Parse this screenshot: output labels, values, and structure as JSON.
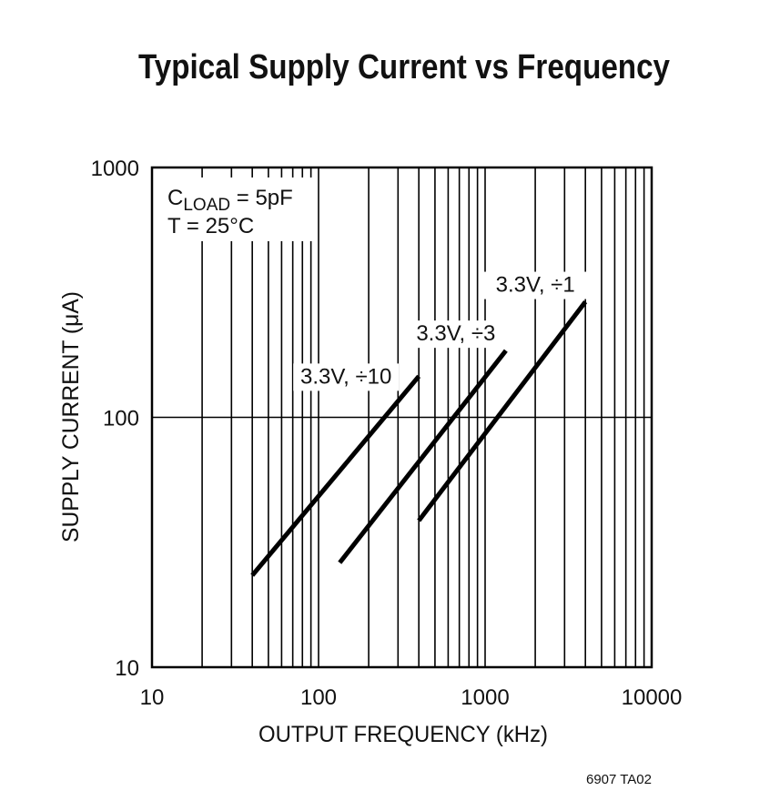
{
  "chart_data": {
    "type": "line",
    "title": "Typical Supply Current vs Frequency",
    "x_label": "OUTPUT FREQUENCY (kHz)",
    "y_label": "SUPPLY CURRENT (μA)",
    "xscale": "log",
    "yscale": "log",
    "xlim": [
      10,
      10000
    ],
    "ylim": [
      10,
      1000
    ],
    "xticks": [
      10,
      100,
      1000,
      10000
    ],
    "yticks": [
      10,
      100,
      1000
    ],
    "x_minor_grid": true,
    "y_minor_grid": false,
    "grid": true,
    "annotation_lines": [
      [
        "C",
        "LOAD",
        " = 5pF"
      ],
      [
        "T = 25°C"
      ]
    ],
    "footnote": "6907 TA02",
    "series": [
      {
        "name": "3.3V, ÷10",
        "color": "#000000",
        "x": [
          40,
          400
        ],
        "values": [
          23.3,
          146
        ]
      },
      {
        "name": "3.3V, ÷3",
        "color": "#000000",
        "x": [
          134,
          1333
        ],
        "values": [
          26.2,
          185
        ]
      },
      {
        "name": "3.3V, ÷1",
        "color": "#000000",
        "x": [
          400,
          4000
        ],
        "values": [
          38.6,
          290
        ]
      }
    ]
  }
}
